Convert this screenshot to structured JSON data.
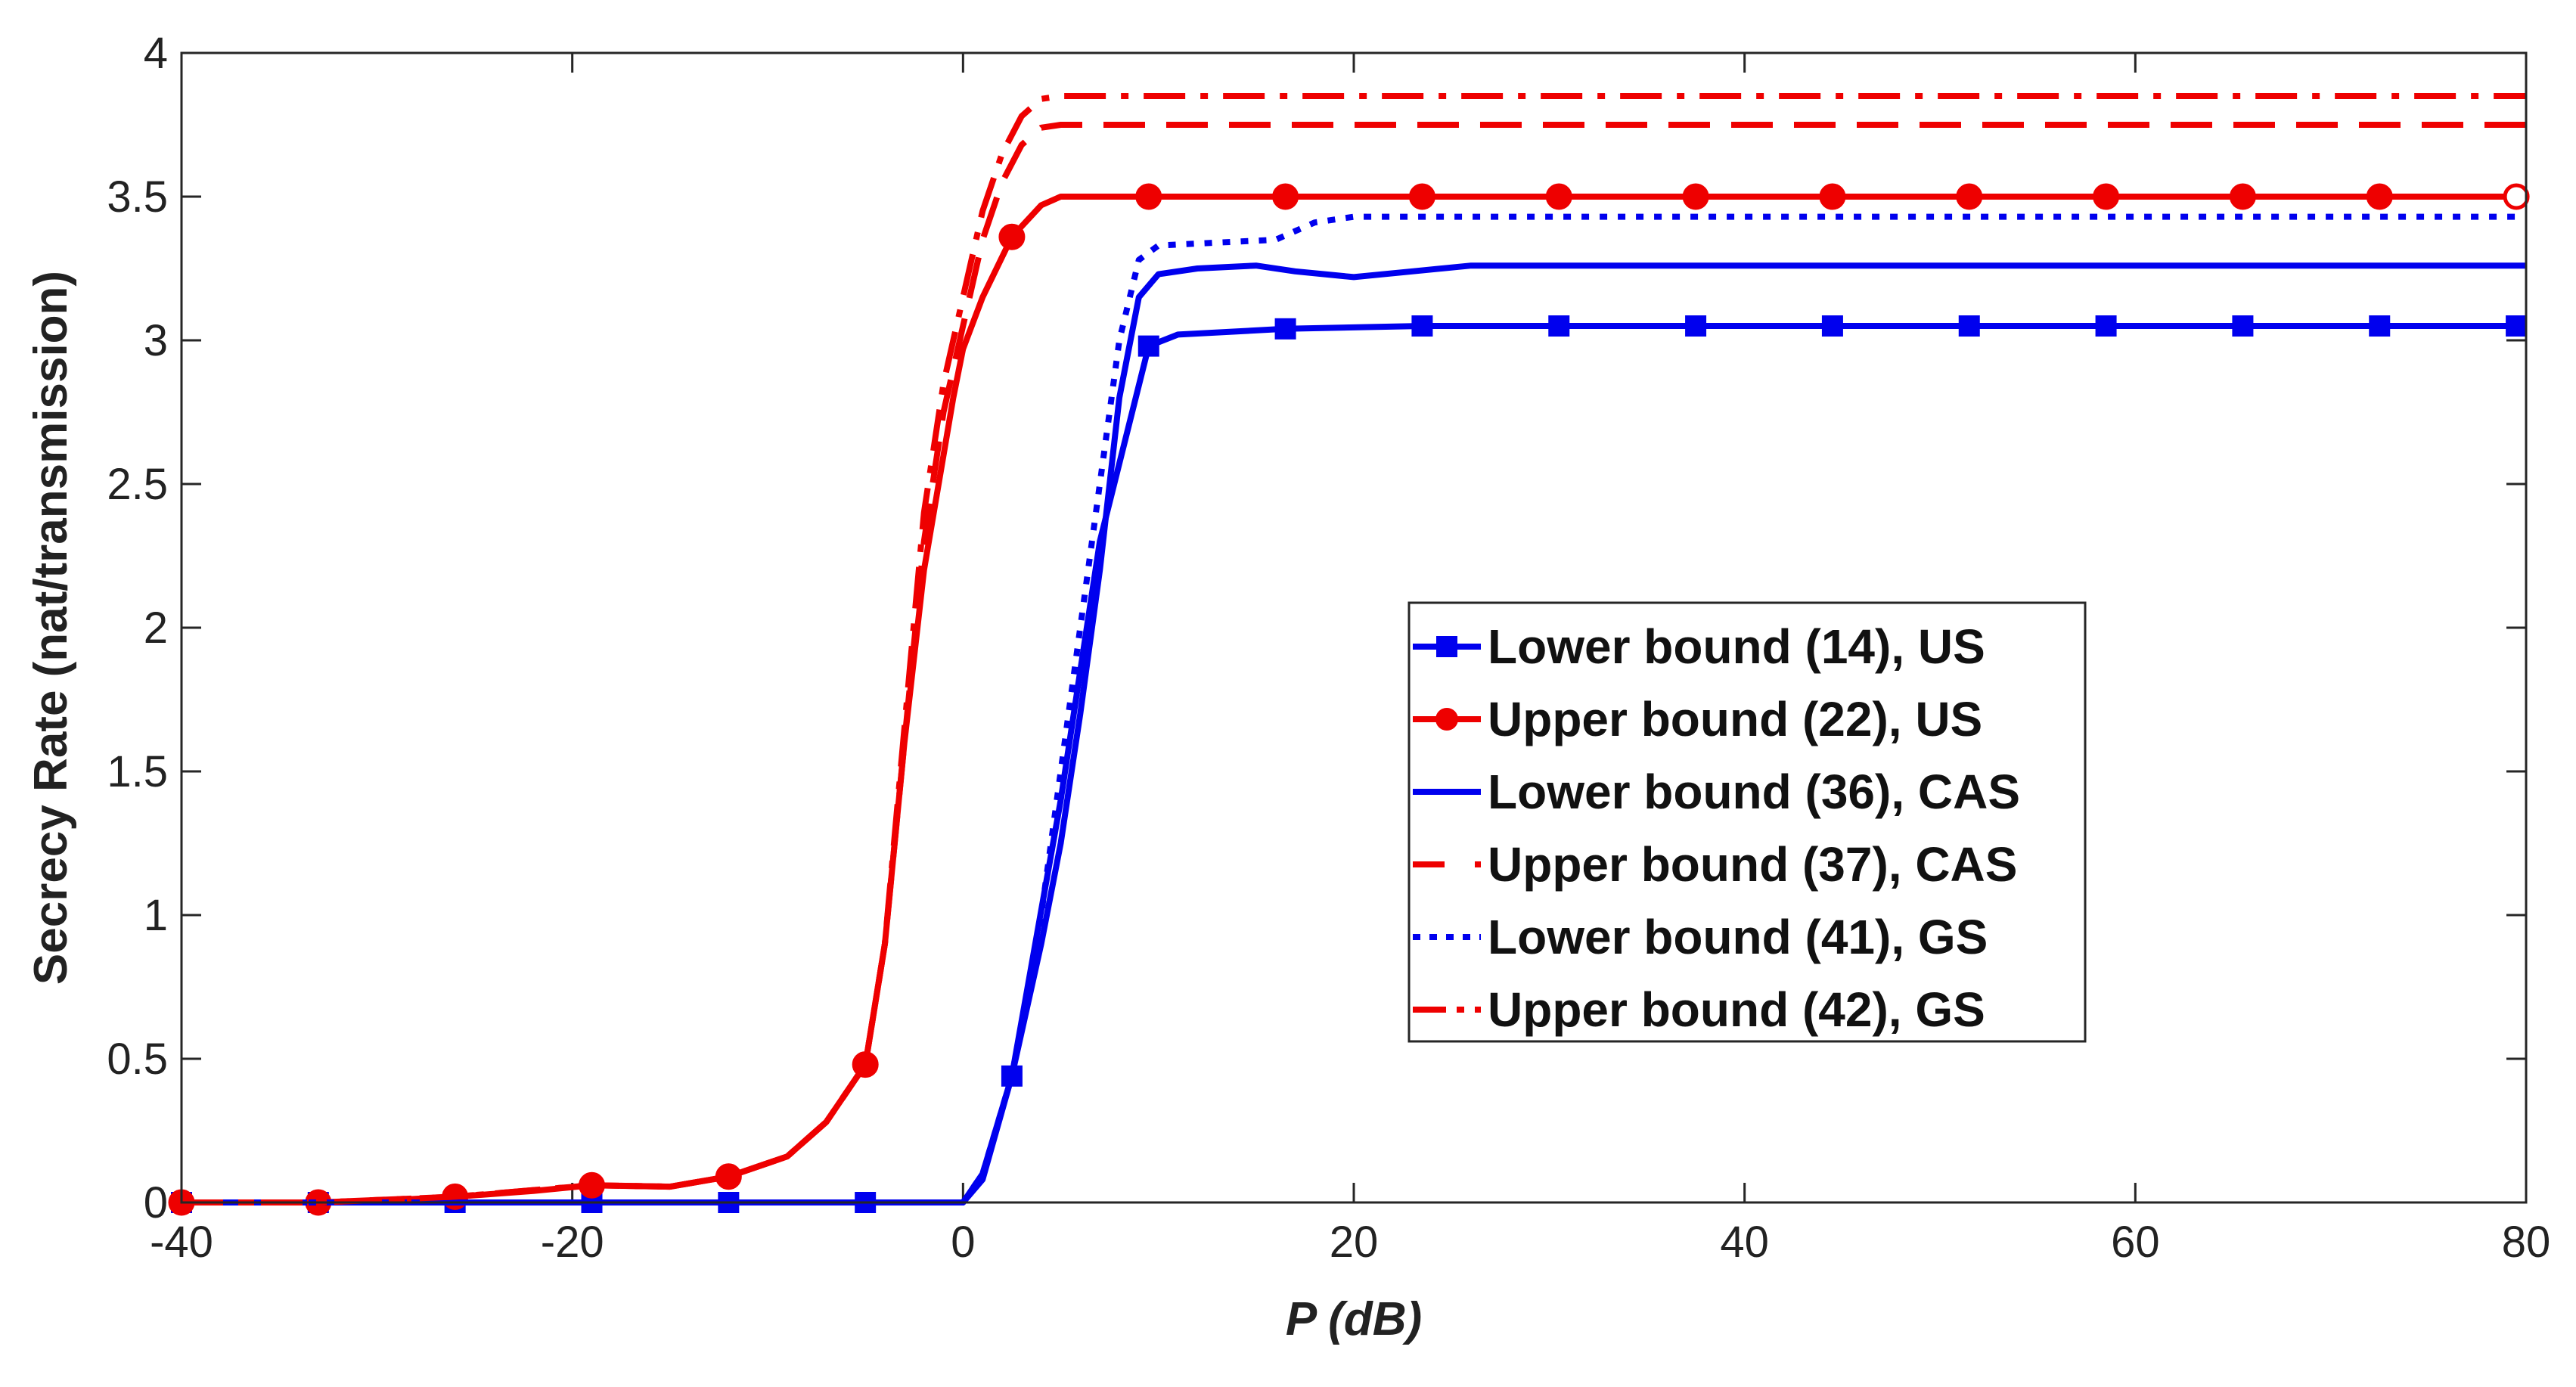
{
  "chart_data": {
    "type": "line",
    "title": "",
    "xlabel": "P (dB)",
    "ylabel": "Secrecy Rate (nat/transmission)",
    "xlim": [
      -40,
      80
    ],
    "ylim": [
      0,
      4
    ],
    "xticks": [
      -40,
      -20,
      0,
      20,
      40,
      60,
      80
    ],
    "yticks": [
      0,
      0.5,
      1,
      1.5,
      2,
      2.5,
      3,
      3.5,
      4
    ],
    "xtick_labels": [
      "-40",
      "-20",
      "0",
      "20",
      "40",
      "60",
      "80"
    ],
    "ytick_labels": [
      "0",
      "0.5",
      "1",
      "1.5",
      "2",
      "2.5",
      "3",
      "3.5",
      "4"
    ],
    "grid": false,
    "legend_position": "center-right",
    "series": [
      {
        "name": "Lower bound (14), US",
        "color": "#0000ee",
        "style": "solid",
        "marker": "square",
        "x": [
          -40,
          -33,
          -26,
          -19,
          -12,
          -5,
          0,
          1,
          2.5,
          5,
          7,
          9.5,
          11,
          16.5,
          23.5,
          30.5,
          37.5,
          44.5,
          51.5,
          58.5,
          65.5,
          72.5,
          79.5,
          80
        ],
        "y": [
          0,
          0,
          0,
          0,
          0,
          0,
          0,
          0.08,
          0.44,
          1.4,
          2.3,
          2.98,
          3.02,
          3.04,
          3.05,
          3.05,
          3.05,
          3.05,
          3.05,
          3.05,
          3.05,
          3.05,
          3.05,
          3.05
        ],
        "marker_x": [
          -40,
          -33,
          -26,
          -19,
          -12,
          -5,
          2.5,
          9.5,
          16.5,
          23.5,
          30.5,
          37.5,
          44.5,
          51.5,
          58.5,
          65.5,
          72.5,
          79.5
        ],
        "marker_y": [
          0,
          0,
          0,
          0,
          0,
          0,
          0.44,
          2.98,
          3.04,
          3.05,
          3.05,
          3.05,
          3.05,
          3.05,
          3.05,
          3.05,
          3.05,
          3.05
        ]
      },
      {
        "name": "Upper bound (22), US",
        "color": "#ee0000",
        "style": "solid",
        "marker": "circle",
        "x": [
          -40,
          -33,
          -30,
          -26,
          -22,
          -19,
          -15,
          -12,
          -9,
          -7,
          -5,
          -4,
          -3,
          -2,
          -1,
          -0.5,
          0,
          1,
          2.5,
          4,
          5,
          10,
          20,
          40,
          60,
          80
        ],
        "y": [
          0,
          0,
          0.005,
          0.02,
          0.04,
          0.06,
          0.055,
          0.09,
          0.16,
          0.28,
          0.48,
          0.9,
          1.6,
          2.2,
          2.6,
          2.8,
          2.97,
          3.15,
          3.36,
          3.47,
          3.5,
          3.5,
          3.5,
          3.5,
          3.5,
          3.5
        ],
        "marker_x": [
          -40,
          -33,
          -26,
          -19,
          -12,
          -5,
          2.5,
          9.5,
          16.5,
          23.5,
          30.5,
          37.5,
          44.5,
          51.5,
          58.5,
          65.5,
          72.5,
          79.5
        ],
        "marker_y": [
          0,
          0,
          0.02,
          0.06,
          0.09,
          0.48,
          3.36,
          3.5,
          3.5,
          3.5,
          3.5,
          3.5,
          3.5,
          3.5,
          3.5,
          3.5,
          3.5,
          3.5
        ]
      },
      {
        "name": "Lower bound (36), CAS",
        "color": "#0000ee",
        "style": "solid",
        "marker": "none",
        "x": [
          -40,
          -10,
          0,
          1,
          2.5,
          4,
          5,
          6,
          7,
          8,
          9,
          10,
          12,
          15,
          17,
          20,
          23,
          26,
          40,
          60,
          80
        ],
        "y": [
          0,
          0,
          0,
          0.1,
          0.44,
          0.9,
          1.25,
          1.7,
          2.2,
          2.8,
          3.15,
          3.23,
          3.25,
          3.26,
          3.24,
          3.22,
          3.24,
          3.26,
          3.26,
          3.26,
          3.26
        ]
      },
      {
        "name": "Upper bound (37), CAS",
        "color": "#ee0000",
        "style": "dashed",
        "marker": "none",
        "x": [
          -40,
          -33,
          -26,
          -19,
          -15,
          -12,
          -9,
          -7,
          -5,
          -4,
          -3,
          -2,
          -1,
          0,
          1,
          2,
          3,
          4,
          5,
          10,
          40,
          80
        ],
        "y": [
          0,
          0,
          0.02,
          0.06,
          0.055,
          0.09,
          0.16,
          0.28,
          0.48,
          0.9,
          1.6,
          2.3,
          2.75,
          3.05,
          3.35,
          3.55,
          3.68,
          3.74,
          3.75,
          3.75,
          3.75,
          3.75
        ]
      },
      {
        "name": "Lower bound (41), GS",
        "color": "#0000ee",
        "style": "dotted",
        "marker": "none",
        "x": [
          -40,
          -10,
          0,
          1,
          2.5,
          4,
          5,
          6,
          7,
          8,
          9,
          10,
          13,
          16,
          18,
          20,
          30,
          40,
          60,
          80
        ],
        "y": [
          0,
          0,
          0,
          0.1,
          0.44,
          1.0,
          1.5,
          2.0,
          2.5,
          3.0,
          3.28,
          3.33,
          3.34,
          3.35,
          3.41,
          3.43,
          3.43,
          3.43,
          3.43,
          3.43
        ]
      },
      {
        "name": "Upper bound (42), GS",
        "color": "#ee0000",
        "style": "dashdot",
        "marker": "none",
        "x": [
          -40,
          -33,
          -26,
          -19,
          -15,
          -12,
          -9,
          -7,
          -5,
          -4,
          -3,
          -2,
          -1,
          0,
          1,
          2,
          3,
          4,
          5,
          10,
          40,
          80
        ],
        "y": [
          0,
          0,
          0.02,
          0.06,
          0.055,
          0.09,
          0.16,
          0.28,
          0.48,
          0.9,
          1.65,
          2.4,
          2.85,
          3.15,
          3.45,
          3.65,
          3.78,
          3.84,
          3.85,
          3.85,
          3.85,
          3.85
        ]
      }
    ]
  }
}
